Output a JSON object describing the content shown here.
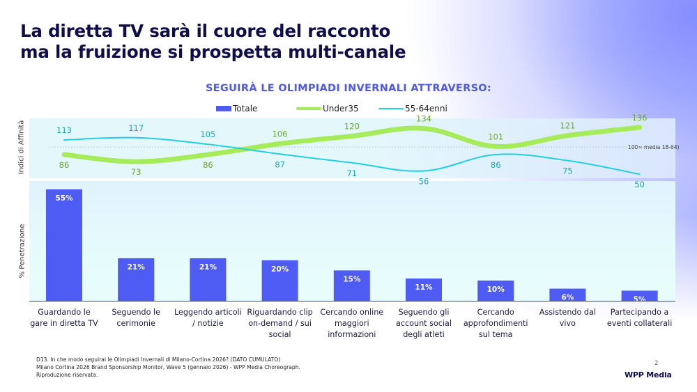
{
  "page": {
    "title_line1": "La diretta TV sarà il cuore del racconto",
    "title_line2": "ma la fruizione si prospetta multi-canale",
    "page_number": "2",
    "logo": "WPP Media",
    "footnote": [
      "D13. In che modo seguirai le Olimpiadi Invernali di Milano-Cortina 2026? (DATO CUMULATO)",
      "Milano Cortina 2026 Brand Sponsorship Monitor, Wave 5 (gennaio 2026) - WPP Media Choreograph.",
      "Riproduzione riservata."
    ]
  },
  "colors": {
    "title": "#0f0e4a",
    "subtitle": "#4f5ae8",
    "bar": "#4f5cf4",
    "under35": "#a6ec5a",
    "under35_label": "#6aa530",
    "age55_64": "#22cfe0",
    "age55_64_label": "#1ea3b8"
  },
  "chart_data": [
    {
      "type": "line",
      "title": "SEGUIRÀ LE OLIMPIADI INVERNALI ATTRAVERSO:",
      "ylabel": "Indici di Affinità",
      "reference_line": {
        "value": 100,
        "label": "100= media 18-64)"
      },
      "ylim": [
        40,
        150
      ],
      "categories": [
        "Guardando le gare in diretta TV",
        "Seguendo le cerimonie",
        "Leggendo articoli / notizie",
        "Riguardando clip on-demand / sui social",
        "Cercando online maggiori informazioni",
        "Seguendo gli account social degli atleti",
        "Cercando approfondimenti sul tema",
        "Assistendo dal vivo",
        "Partecipando a eventi collaterali"
      ],
      "series": [
        {
          "name": "Under35",
          "values": [
            86,
            73,
            86,
            106,
            120,
            134,
            101,
            121,
            136
          ]
        },
        {
          "name": "55-64enni",
          "values": [
            113,
            117,
            105,
            87,
            71,
            56,
            86,
            75,
            50
          ]
        }
      ]
    },
    {
      "type": "bar",
      "ylabel": "% Penetrazione",
      "ylim": [
        0,
        60
      ],
      "categories": [
        [
          "Guardando le",
          "gare in diretta TV"
        ],
        [
          "Seguendo le",
          "cerimonie"
        ],
        [
          "Leggendo articoli",
          "/ notizie"
        ],
        [
          "Riguardando clip",
          "on-demand / sui",
          "social"
        ],
        [
          "Cercando online",
          "maggiori",
          "informazioni"
        ],
        [
          "Seguendo gli",
          "account social",
          "degli atleti"
        ],
        [
          "Cercando",
          "approfondimenti",
          "sul tema"
        ],
        [
          "Assistendo dal",
          "vivo"
        ],
        [
          "Partecipando a",
          "eventi collaterali"
        ]
      ],
      "series": [
        {
          "name": "Totale",
          "values": [
            55,
            21,
            21,
            20,
            15,
            11,
            10,
            6,
            5
          ]
        }
      ],
      "data_labels": [
        "55%",
        "21%",
        "21%",
        "20%",
        "15%",
        "11%",
        "10%",
        "6%",
        "5%"
      ]
    }
  ],
  "legend": [
    {
      "name": "Totale",
      "kind": "bar"
    },
    {
      "name": "Under35",
      "kind": "line-thick"
    },
    {
      "name": "55-64enni",
      "kind": "line-thin"
    }
  ]
}
